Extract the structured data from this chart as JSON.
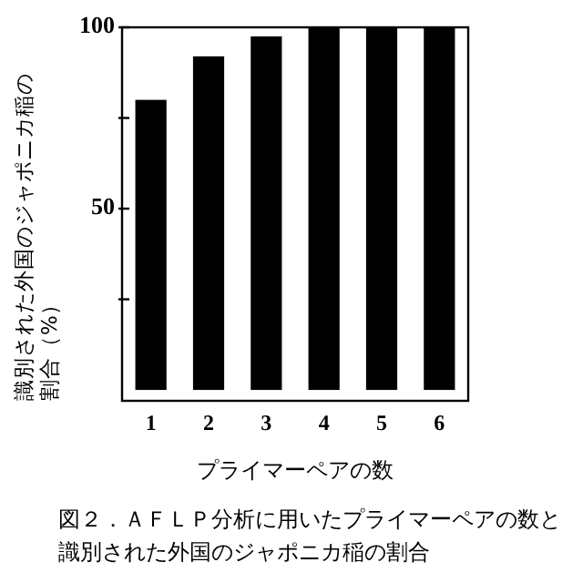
{
  "chart_data": {
    "type": "bar",
    "categories": [
      "1",
      "2",
      "3",
      "4",
      "5",
      "6"
    ],
    "values": [
      80,
      92,
      97.5,
      100,
      100,
      100
    ],
    "color": "#000000",
    "ylim": [
      -3,
      100
    ],
    "yticks": [
      {
        "value": 25,
        "label": null
      },
      50,
      {
        "value": 75,
        "label": null
      },
      100
    ],
    "xlabel": "プライマーペアの数",
    "ylabel": "識別された外国のジャポニカ稲の割合（%）",
    "annotations": [
      "図２．ＡＦＬＰ分析に用いたプライマーペアの数と識別された外国のジャポニカ稲の割合"
    ],
    "grid": false
  }
}
